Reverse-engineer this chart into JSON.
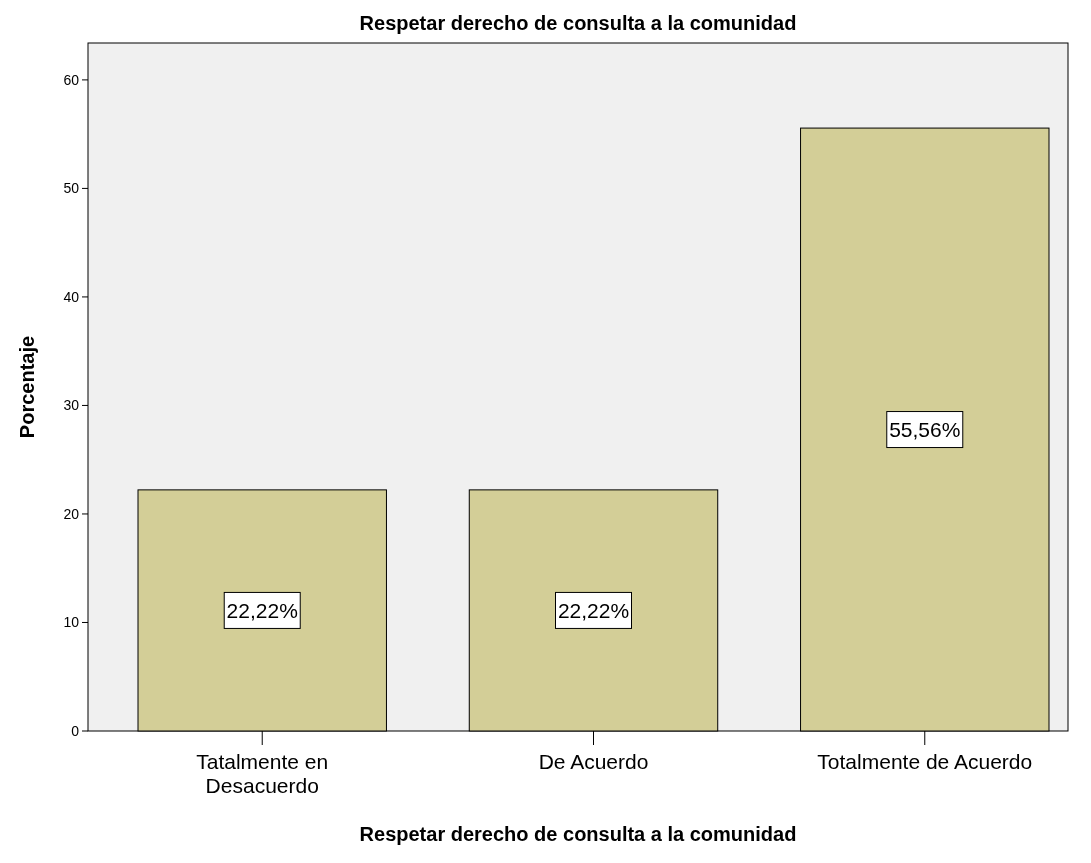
{
  "chart_data": {
    "type": "bar",
    "title": "Respetar derecho de consulta a la comunidad",
    "xlabel": "Respetar derecho de consulta a la comunidad",
    "ylabel": "Porcentaje",
    "categories": [
      "Tatalmente en Desacuerdo",
      "De Acuerdo",
      "Totalmente de Acuerdo"
    ],
    "values": [
      22.22,
      22.22,
      55.56
    ],
    "value_labels": [
      "22,22%",
      "22,22%",
      "55,56%"
    ],
    "color": "#d3ce97",
    "ylim": [
      0,
      63.4
    ],
    "yticks": [
      0,
      10,
      20,
      30,
      40,
      50,
      60
    ],
    "grid": false
  }
}
